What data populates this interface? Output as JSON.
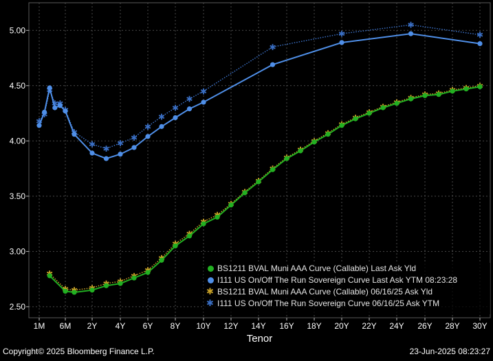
{
  "chart_data": {
    "type": "line",
    "xlabel": "Tenor",
    "ylabel": "",
    "ylim": [
      2.4,
      5.25
    ],
    "yticks": [
      "2.50",
      "3.00",
      "3.50",
      "4.00",
      "4.50",
      "5.00"
    ],
    "ytick_values": [
      2.5,
      3.0,
      3.5,
      4.0,
      4.5,
      5.0
    ],
    "xtick_labels": [
      "1M",
      "6M",
      "2Y",
      "4Y",
      "6Y",
      "8Y",
      "10Y",
      "12Y",
      "14Y",
      "16Y",
      "18Y",
      "20Y",
      "22Y",
      "24Y",
      "26Y",
      "28Y",
      "30Y"
    ],
    "legend_position": "bottom-right",
    "grid": true,
    "series": [
      {
        "name": "BS1211 BVAL Muni AAA Curve (Callable) Last Ask Yld",
        "color": "#22b022",
        "style": "solid-dot",
        "points": [
          [
            "3M",
            2.78
          ],
          [
            "6M",
            2.64
          ],
          [
            "1Y",
            2.63
          ],
          [
            "2Y",
            2.65
          ],
          [
            "3Y",
            2.69
          ],
          [
            "4Y",
            2.71
          ],
          [
            "5Y",
            2.76
          ],
          [
            "6Y",
            2.81
          ],
          [
            "7Y",
            2.92
          ],
          [
            "8Y",
            3.05
          ],
          [
            "9Y",
            3.14
          ],
          [
            "10Y",
            3.25
          ],
          [
            "11Y",
            3.31
          ],
          [
            "12Y",
            3.42
          ],
          [
            "13Y",
            3.53
          ],
          [
            "14Y",
            3.63
          ],
          [
            "15Y",
            3.74
          ],
          [
            "16Y",
            3.84
          ],
          [
            "17Y",
            3.91
          ],
          [
            "18Y",
            3.99
          ],
          [
            "19Y",
            4.06
          ],
          [
            "20Y",
            4.14
          ],
          [
            "21Y",
            4.2
          ],
          [
            "22Y",
            4.25
          ],
          [
            "23Y",
            4.3
          ],
          [
            "24Y",
            4.34
          ],
          [
            "25Y",
            4.38
          ],
          [
            "26Y",
            4.41
          ],
          [
            "27Y",
            4.42
          ],
          [
            "28Y",
            4.45
          ],
          [
            "29Y",
            4.47
          ],
          [
            "30Y",
            4.49
          ]
        ]
      },
      {
        "name": "I111 US On/Off The Run Sovereign Curve Last Ask YTM 08:23:28",
        "color": "#4f8fe8",
        "style": "solid-dot",
        "points": [
          [
            "1M",
            4.14
          ],
          [
            "2M",
            4.26
          ],
          [
            "3M",
            4.48
          ],
          [
            "4M",
            4.3
          ],
          [
            "5M",
            4.32
          ],
          [
            "6M",
            4.27
          ],
          [
            "1Y",
            4.06
          ],
          [
            "2Y",
            3.89
          ],
          [
            "3Y",
            3.84
          ],
          [
            "4Y",
            3.88
          ],
          [
            "5Y",
            3.94
          ],
          [
            "6Y",
            4.04
          ],
          [
            "7Y",
            4.13
          ],
          [
            "8Y",
            4.21
          ],
          [
            "9Y",
            4.29
          ],
          [
            "10Y",
            4.35
          ],
          [
            "15Y",
            4.69
          ],
          [
            "20Y",
            4.89
          ],
          [
            "25Y",
            4.97
          ],
          [
            "30Y",
            4.88
          ]
        ]
      },
      {
        "name": "BS1211 BVAL Muni AAA Curve (Callable) 06/16/25 Ask Yld",
        "color": "#c9a227",
        "style": "dotted-star",
        "points": [
          [
            "3M",
            2.8
          ],
          [
            "6M",
            2.66
          ],
          [
            "1Y",
            2.65
          ],
          [
            "2Y",
            2.67
          ],
          [
            "3Y",
            2.71
          ],
          [
            "4Y",
            2.73
          ],
          [
            "5Y",
            2.78
          ],
          [
            "6Y",
            2.83
          ],
          [
            "7Y",
            2.94
          ],
          [
            "8Y",
            3.07
          ],
          [
            "9Y",
            3.16
          ],
          [
            "10Y",
            3.27
          ],
          [
            "11Y",
            3.33
          ],
          [
            "12Y",
            3.43
          ],
          [
            "13Y",
            3.54
          ],
          [
            "14Y",
            3.64
          ],
          [
            "15Y",
            3.75
          ],
          [
            "16Y",
            3.85
          ],
          [
            "17Y",
            3.92
          ],
          [
            "18Y",
            4.0
          ],
          [
            "19Y",
            4.07
          ],
          [
            "20Y",
            4.15
          ],
          [
            "21Y",
            4.21
          ],
          [
            "22Y",
            4.26
          ],
          [
            "23Y",
            4.31
          ],
          [
            "24Y",
            4.35
          ],
          [
            "25Y",
            4.39
          ],
          [
            "26Y",
            4.42
          ],
          [
            "27Y",
            4.43
          ],
          [
            "28Y",
            4.46
          ],
          [
            "29Y",
            4.48
          ],
          [
            "30Y",
            4.5
          ]
        ]
      },
      {
        "name": "I111 US On/Off The Run Sovereign Curve 06/16/25 Ask YTM",
        "color": "#3a6fc4",
        "style": "dotted-star",
        "points": [
          [
            "1M",
            4.18
          ],
          [
            "2M",
            4.24
          ],
          [
            "3M",
            4.46
          ],
          [
            "4M",
            4.34
          ],
          [
            "5M",
            4.34
          ],
          [
            "6M",
            4.28
          ],
          [
            "1Y",
            4.08
          ],
          [
            "2Y",
            3.97
          ],
          [
            "3Y",
            3.93
          ],
          [
            "4Y",
            3.98
          ],
          [
            "5Y",
            4.03
          ],
          [
            "6Y",
            4.13
          ],
          [
            "7Y",
            4.22
          ],
          [
            "8Y",
            4.3
          ],
          [
            "9Y",
            4.38
          ],
          [
            "10Y",
            4.45
          ],
          [
            "15Y",
            4.85
          ],
          [
            "20Y",
            4.97
          ],
          [
            "25Y",
            5.05
          ],
          [
            "30Y",
            4.96
          ]
        ]
      }
    ]
  },
  "footer": {
    "copyright": "Copyright© 2025 Bloomberg Finance L.P.",
    "timestamp": "23-Jun-2025 08:23:27"
  }
}
